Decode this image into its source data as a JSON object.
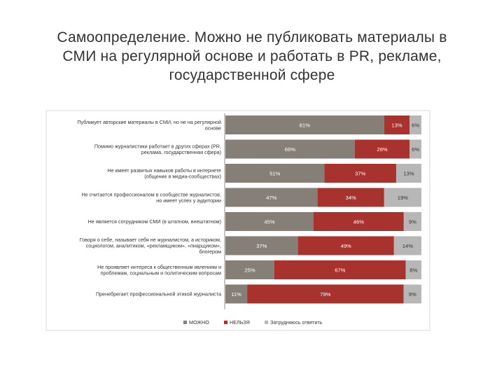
{
  "slide": {
    "title_lines": [
      "Самоопределение. Можно не публиковать материалы в",
      "СМИ  на регулярной основе и работать в PR, рекламе,",
      "государственной сфере"
    ]
  },
  "chart_data": {
    "type": "bar",
    "orientation": "horizontal",
    "stacked": true,
    "percent_stacked": true,
    "categories": [
      [
        "Публикует авторские материалы в СМИ, но не на регулярной",
        "основе"
      ],
      [
        "Помимо журналистики работает в других сферах (PR,",
        "реклама, государственная сфера)"
      ],
      [
        "Не имеет развитых навыков работы в интернете",
        "(общение в медиа-сообществах)"
      ],
      [
        "Не считается профессионалом в сообществе журналистов,",
        "но имеет успех у аудитории"
      ],
      [
        "Не является сотрудником СМИ (в штатном, внештатном)"
      ],
      [
        "Говоря о себе, называет себя не журналистом, а историком,",
        "социологом, аналитиком, «рекламщиком», «пиарщиком»,",
        "блогером"
      ],
      [
        "Не проявляет интереса к общественным явлениям и",
        "проблемам, социальным и политическим вопросам"
      ],
      [
        "Пренебрегает профессиональной этикой журналиста"
      ]
    ],
    "series": [
      {
        "name": "МОЖНО",
        "color": "#857f78",
        "values": [
          81,
          66,
          51,
          47,
          45,
          37,
          25,
          11
        ]
      },
      {
        "name": "НЕЛЬЗЯ",
        "color": "#a8322d",
        "values": [
          13,
          28,
          37,
          34,
          46,
          49,
          67,
          79
        ]
      },
      {
        "name": "Затрудняюсь ответить",
        "color": "#b7b7b7",
        "values": [
          6,
          6,
          13,
          19,
          9,
          14,
          8,
          9
        ]
      }
    ],
    "xlim": [
      0,
      100
    ],
    "legend_position": "bottom",
    "grid": false
  }
}
